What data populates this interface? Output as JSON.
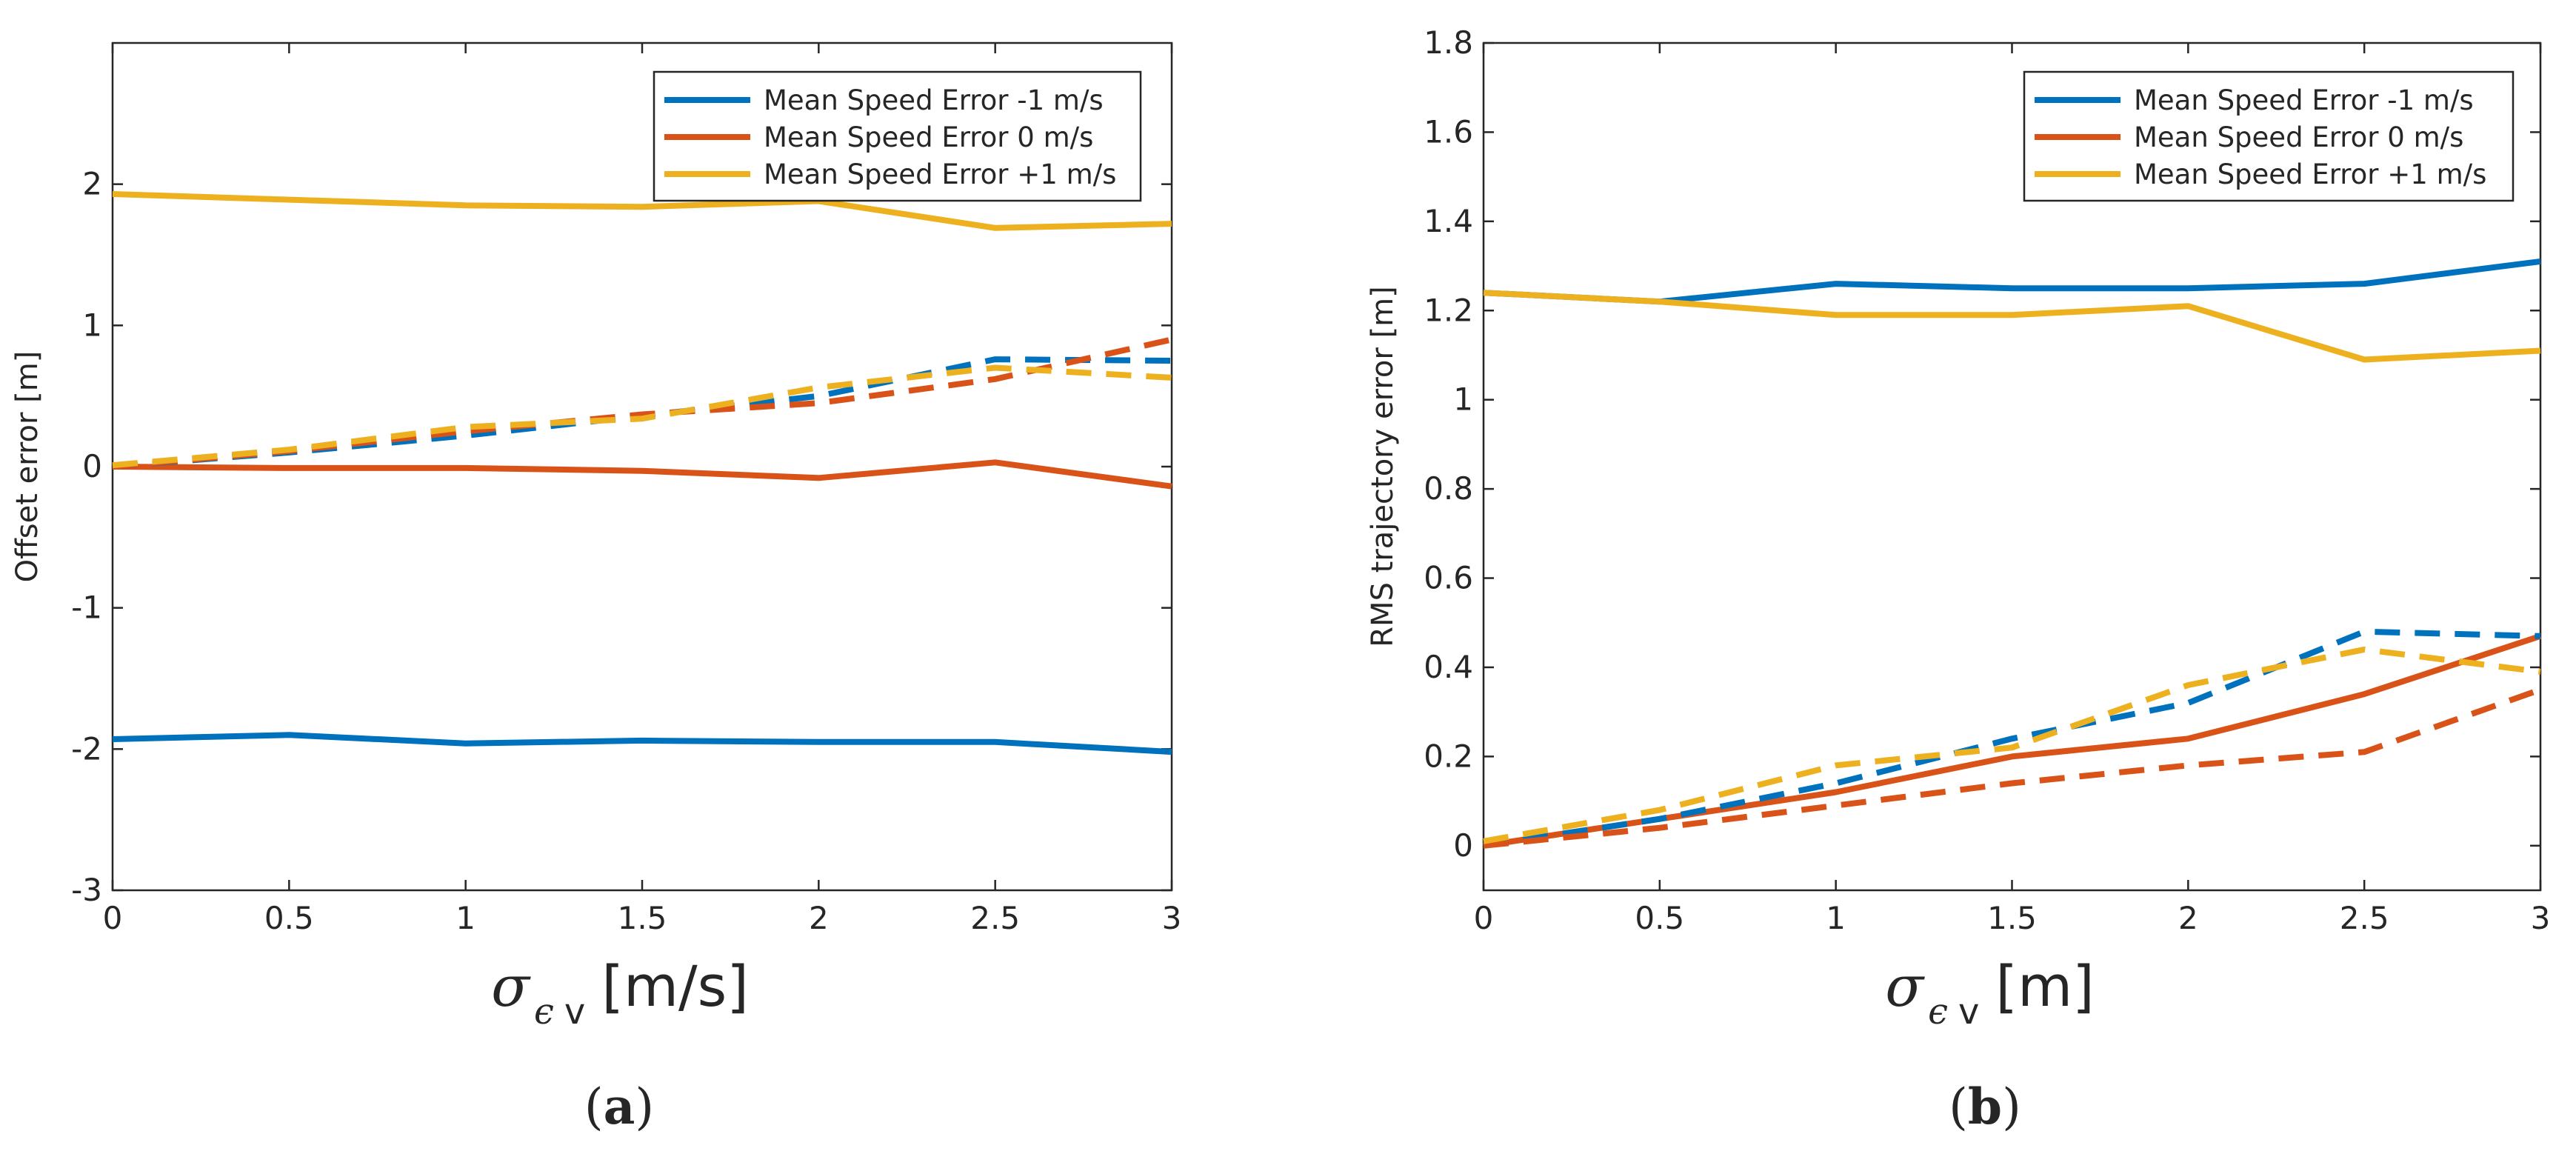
{
  "charts": [
    {
      "type": "line",
      "title": "",
      "caption": {
        "open": "(",
        "letter": "a",
        "close": ")"
      },
      "xlabel": {
        "symbol": "σ",
        "sub1": "ϵ",
        "sub2": "v",
        "unit": "[m/s]"
      },
      "ylabel": "Offset error [m]",
      "xlim": [
        0,
        3
      ],
      "ylim": [
        -3,
        3
      ],
      "xticks": [
        "0",
        "0.5",
        "1",
        "1.5",
        "2",
        "2.5",
        "3"
      ],
      "yticks": [
        "-3",
        "-2",
        "-1",
        "0",
        "1",
        "2"
      ],
      "legend_position": "top-right",
      "x": [
        0,
        0.5,
        1,
        1.5,
        2,
        2.5,
        3
      ],
      "series": [
        {
          "name": "Mean Speed Error -1 m/s",
          "color": "#0072BD",
          "style": "solid",
          "values": [
            -1.93,
            -1.9,
            -1.96,
            -1.94,
            -1.95,
            -1.95,
            -2.02
          ]
        },
        {
          "name": "Mean Speed Error 0 m/s",
          "color": "#D95319",
          "style": "solid",
          "values": [
            0.0,
            -0.01,
            -0.01,
            -0.03,
            -0.08,
            0.03,
            -0.14
          ]
        },
        {
          "name": "Mean Speed Error +1 m/s",
          "color": "#EDB120",
          "style": "solid",
          "values": [
            1.93,
            1.89,
            1.85,
            1.84,
            1.88,
            1.69,
            1.72
          ]
        },
        {
          "name": "",
          "color": "#0072BD",
          "style": "dashed",
          "values": [
            0.0,
            0.1,
            0.22,
            0.36,
            0.5,
            0.76,
            0.75
          ]
        },
        {
          "name": "",
          "color": "#D95319",
          "style": "dashed",
          "values": [
            0.0,
            0.11,
            0.25,
            0.37,
            0.45,
            0.62,
            0.9
          ]
        },
        {
          "name": "",
          "color": "#EDB120",
          "style": "dashed",
          "values": [
            0.01,
            0.12,
            0.28,
            0.34,
            0.56,
            0.7,
            0.63
          ]
        }
      ]
    },
    {
      "type": "line",
      "title": "",
      "caption": {
        "open": "(",
        "letter": "b",
        "close": ")"
      },
      "xlabel": {
        "symbol": "σ",
        "sub1": "ϵ",
        "sub2": "v",
        "unit": "[m]"
      },
      "ylabel": "RMS trajectory error [m]",
      "xlim": [
        0,
        3
      ],
      "ylim": [
        -0.1,
        1.8
      ],
      "xticks": [
        "0",
        "0.5",
        "1",
        "1.5",
        "2",
        "2.5",
        "3"
      ],
      "yticks": [
        "0",
        "0.2",
        "0.4",
        "0.6",
        "0.8",
        "1",
        "1.2",
        "1.4",
        "1.6",
        "1.8"
      ],
      "legend_position": "top-right",
      "x": [
        0,
        0.5,
        1,
        1.5,
        2,
        2.5,
        3
      ],
      "series": [
        {
          "name": "Mean Speed Error -1 m/s",
          "color": "#0072BD",
          "style": "solid",
          "values": [
            1.24,
            1.22,
            1.26,
            1.25,
            1.25,
            1.26,
            1.31
          ]
        },
        {
          "name": "Mean Speed Error 0 m/s",
          "color": "#D95319",
          "style": "solid",
          "values": [
            0.0,
            0.06,
            0.12,
            0.2,
            0.24,
            0.34,
            0.47
          ]
        },
        {
          "name": "Mean Speed Error +1 m/s",
          "color": "#EDB120",
          "style": "solid",
          "values": [
            1.24,
            1.22,
            1.19,
            1.19,
            1.21,
            1.09,
            1.11
          ]
        },
        {
          "name": "",
          "color": "#0072BD",
          "style": "dashed",
          "values": [
            0.0,
            0.06,
            0.14,
            0.24,
            0.32,
            0.48,
            0.47
          ]
        },
        {
          "name": "",
          "color": "#D95319",
          "style": "dashed",
          "values": [
            0.0,
            0.04,
            0.09,
            0.14,
            0.18,
            0.21,
            0.35
          ]
        },
        {
          "name": "",
          "color": "#EDB120",
          "style": "dashed",
          "values": [
            0.01,
            0.08,
            0.18,
            0.22,
            0.36,
            0.44,
            0.39
          ]
        }
      ]
    }
  ]
}
